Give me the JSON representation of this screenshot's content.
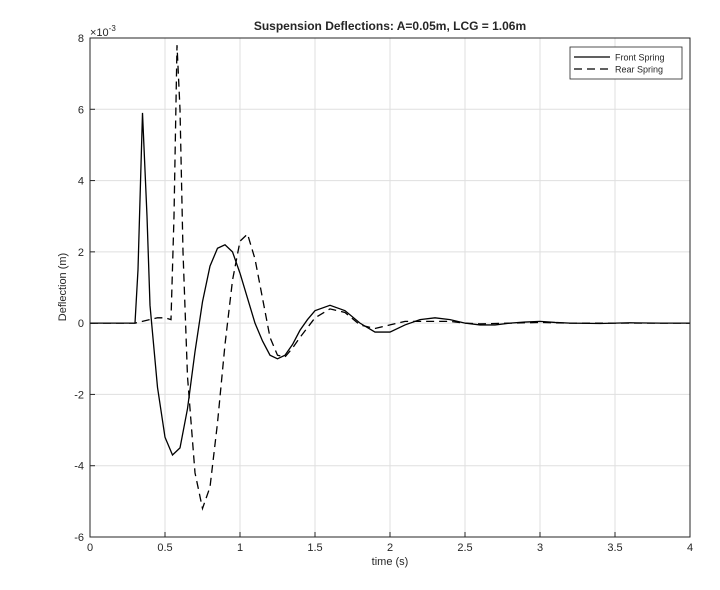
{
  "chart_data": {
    "type": "line",
    "title": "Suspension Deflections: A=0.05m, LCG = 1.06m",
    "xlabel": "time (s)",
    "ylabel": "Deflection (m)",
    "y_multiplier": {
      "base": "×10",
      "exponent": "-3"
    },
    "xlim": [
      0,
      4
    ],
    "xticks": [
      0,
      0.5,
      1,
      1.5,
      2,
      2.5,
      3,
      3.5,
      4
    ],
    "ylim": [
      -6,
      8
    ],
    "yticks": [
      -6,
      -4,
      -2,
      0,
      2,
      4,
      6,
      8
    ],
    "grid": true,
    "legend": "northeast",
    "series": [
      {
        "name": "Front Spring",
        "color": "#000000",
        "dash": "solid",
        "x": [
          0,
          0.3,
          0.32,
          0.35,
          0.38,
          0.4,
          0.45,
          0.5,
          0.55,
          0.6,
          0.65,
          0.7,
          0.75,
          0.8,
          0.85,
          0.9,
          0.95,
          1.0,
          1.05,
          1.1,
          1.15,
          1.2,
          1.25,
          1.3,
          1.35,
          1.4,
          1.45,
          1.5,
          1.6,
          1.7,
          1.8,
          1.9,
          2.0,
          2.1,
          2.2,
          2.3,
          2.4,
          2.5,
          2.6,
          2.7,
          2.8,
          2.9,
          3.0,
          3.1,
          3.2,
          3.4,
          3.6,
          3.8,
          4.0
        ],
        "values": [
          0,
          0,
          1.5,
          5.9,
          3,
          0.5,
          -1.8,
          -3.2,
          -3.7,
          -3.5,
          -2.4,
          -0.8,
          0.6,
          1.6,
          2.1,
          2.2,
          2.0,
          1.4,
          0.7,
          0,
          -0.5,
          -0.9,
          -1.0,
          -0.9,
          -0.6,
          -0.2,
          0.1,
          0.35,
          0.5,
          0.35,
          0,
          -0.25,
          -0.25,
          -0.05,
          0.1,
          0.15,
          0.1,
          0,
          -0.05,
          -0.05,
          0,
          0.03,
          0.05,
          0.02,
          0,
          -0.01,
          0.01,
          0,
          0
        ]
      },
      {
        "name": "Rear Spring",
        "color": "#000000",
        "dash": "dashed",
        "x": [
          0,
          0.3,
          0.4,
          0.45,
          0.5,
          0.54,
          0.56,
          0.58,
          0.6,
          0.62,
          0.65,
          0.7,
          0.75,
          0.8,
          0.85,
          0.9,
          0.95,
          1.0,
          1.05,
          1.1,
          1.15,
          1.2,
          1.25,
          1.3,
          1.35,
          1.4,
          1.5,
          1.6,
          1.7,
          1.8,
          1.9,
          2.0,
          2.1,
          2.2,
          2.3,
          2.4,
          2.5,
          2.6,
          2.8,
          3.0,
          3.2,
          3.6,
          4.0
        ],
        "values": [
          0,
          0,
          0.1,
          0.15,
          0.15,
          0.1,
          3,
          7.8,
          6,
          2,
          -1.5,
          -4.2,
          -5.2,
          -4.6,
          -2.8,
          -0.6,
          1.2,
          2.3,
          2.5,
          1.8,
          0.7,
          -0.4,
          -0.9,
          -0.95,
          -0.7,
          -0.4,
          0.15,
          0.4,
          0.3,
          -0.05,
          -0.15,
          -0.05,
          0.05,
          0.05,
          0.05,
          0.05,
          0,
          -0.02,
          0,
          0.02,
          0,
          0,
          0
        ]
      }
    ]
  }
}
